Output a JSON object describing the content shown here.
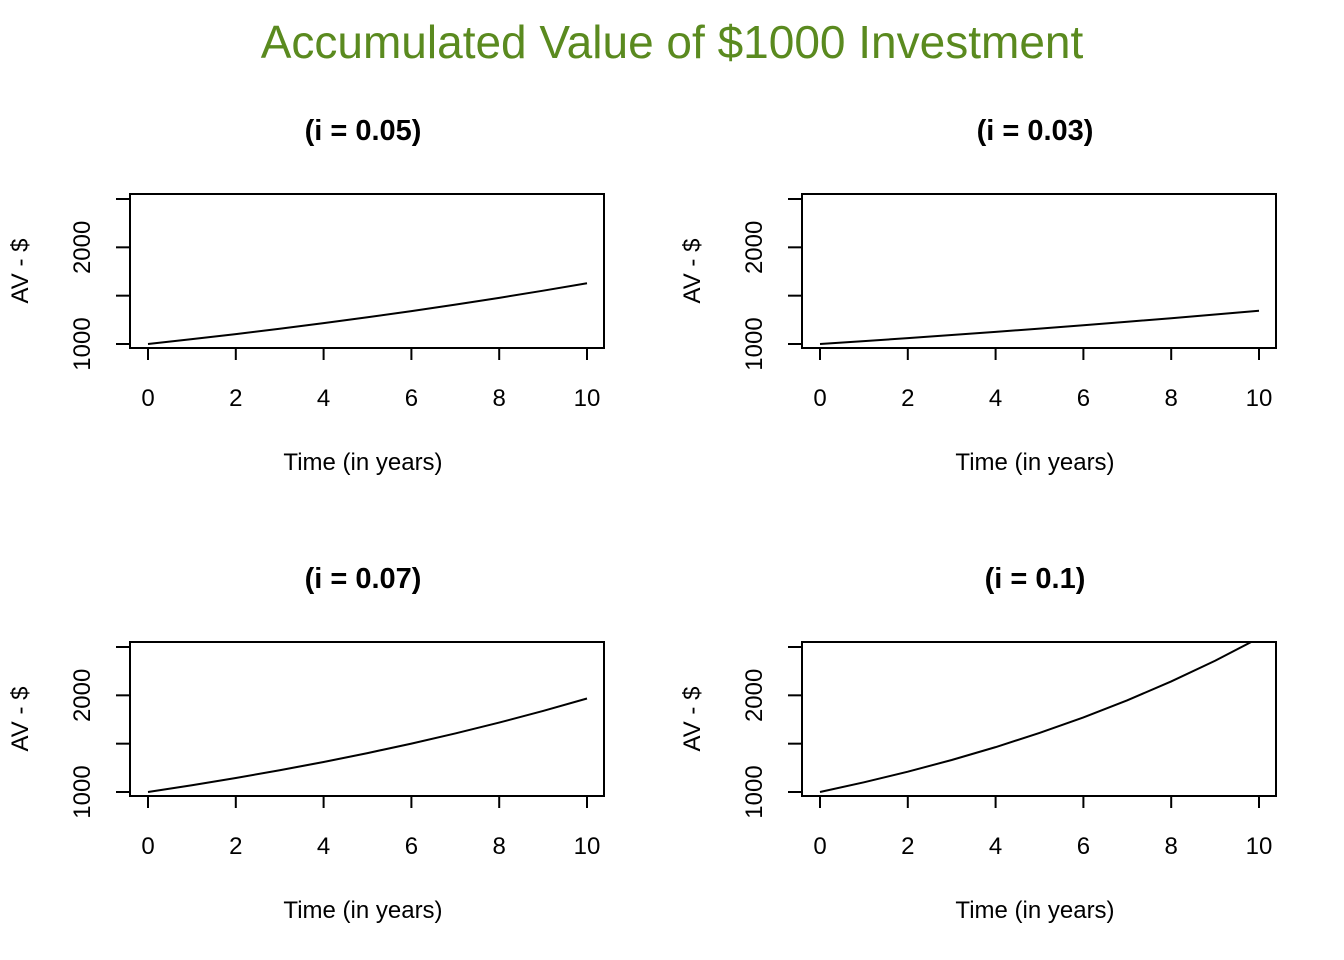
{
  "title": "Accumulated Value of $1000 Investment",
  "colors": {
    "title": "#5a8a1f",
    "line": "#000000",
    "axis": "#000000",
    "background": "#ffffff"
  },
  "chart_data": [
    {
      "type": "line",
      "title": "(i = 0.05)",
      "xlabel": "Time (in years)",
      "ylabel": "AV - $",
      "xlim": [
        0,
        10
      ],
      "ylim": [
        1000,
        2600
      ],
      "xticks": [
        0,
        2,
        4,
        6,
        8,
        10
      ],
      "yticks": [
        1000,
        1500,
        2000,
        2500
      ],
      "ytick_labels": [
        "1000",
        "",
        "2000",
        ""
      ],
      "grid": false,
      "series": [
        {
          "x": [
            0,
            1,
            2,
            3,
            4,
            5,
            6,
            7,
            8,
            9,
            10
          ],
          "values": [
            1000,
            1050,
            1102.5,
            1157.63,
            1215.51,
            1276.28,
            1340.1,
            1407.1,
            1477.46,
            1551.33,
            1628.89
          ]
        }
      ]
    },
    {
      "type": "line",
      "title": "(i = 0.03)",
      "xlabel": "Time (in years)",
      "ylabel": "AV - $",
      "xlim": [
        0,
        10
      ],
      "ylim": [
        1000,
        2600
      ],
      "xticks": [
        0,
        2,
        4,
        6,
        8,
        10
      ],
      "yticks": [
        1000,
        1500,
        2000,
        2500
      ],
      "ytick_labels": [
        "1000",
        "",
        "2000",
        ""
      ],
      "grid": false,
      "series": [
        {
          "x": [
            0,
            1,
            2,
            3,
            4,
            5,
            6,
            7,
            8,
            9,
            10
          ],
          "values": [
            1000,
            1030,
            1060.9,
            1092.73,
            1125.51,
            1159.27,
            1194.05,
            1229.87,
            1266.77,
            1304.77,
            1343.92
          ]
        }
      ]
    },
    {
      "type": "line",
      "title": "(i = 0.07)",
      "xlabel": "Time (in years)",
      "ylabel": "AV - $",
      "xlim": [
        0,
        10
      ],
      "ylim": [
        1000,
        2600
      ],
      "xticks": [
        0,
        2,
        4,
        6,
        8,
        10
      ],
      "yticks": [
        1000,
        1500,
        2000,
        2500
      ],
      "ytick_labels": [
        "1000",
        "",
        "2000",
        ""
      ],
      "grid": false,
      "series": [
        {
          "x": [
            0,
            1,
            2,
            3,
            4,
            5,
            6,
            7,
            8,
            9,
            10
          ],
          "values": [
            1000,
            1070,
            1144.9,
            1225.04,
            1310.8,
            1402.55,
            1500.73,
            1605.78,
            1718.19,
            1838.46,
            1967.15
          ]
        }
      ]
    },
    {
      "type": "line",
      "title": "(i = 0.1)",
      "xlabel": "Time (in years)",
      "ylabel": "AV - $",
      "xlim": [
        0,
        10
      ],
      "ylim": [
        1000,
        2600
      ],
      "xticks": [
        0,
        2,
        4,
        6,
        8,
        10
      ],
      "yticks": [
        1000,
        1500,
        2000,
        2500
      ],
      "ytick_labels": [
        "1000",
        "",
        "2000",
        ""
      ],
      "grid": false,
      "series": [
        {
          "x": [
            0,
            1,
            2,
            3,
            4,
            5,
            6,
            7,
            8,
            9,
            10
          ],
          "values": [
            1000,
            1100,
            1210,
            1331,
            1464.1,
            1610.51,
            1771.56,
            1948.72,
            2143.59,
            2357.95,
            2593.74
          ]
        }
      ]
    }
  ]
}
